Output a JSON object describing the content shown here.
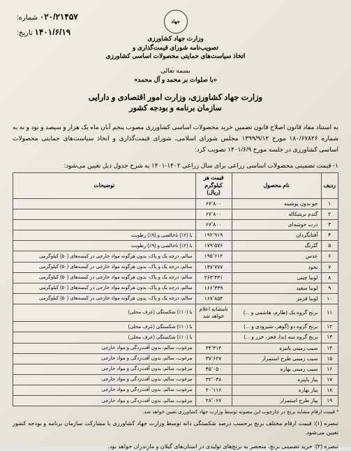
{
  "meta": {
    "number_label": "شماره:",
    "number_value": "۰۲۰/۲۱۴۵۷",
    "date_label": "تاریخ:",
    "date_value": "۱۴۰۱/۶/۱۹"
  },
  "header": {
    "logo_text": "جهاد",
    "line1": "وزارت جهاد کشاورزی",
    "line2": "تصویب‌نامه شورای قیمت‌گذاری و",
    "line3": "اتخاذ سیاست‌های حمایتی محصولات اساسی کشاورزی"
  },
  "bism": "بسمه تعالی",
  "salawat": "«با صلوات بر محمد و آل محمد»",
  "main_title": "وزارت جهاد کشاورزی، وزارت امور اقتصادی و دارایی",
  "sub_title": "سازمان برنامه و بودجه کشور",
  "paragraph": "به استناد مفاد قانون اصلاح قانون تضمین خرید محصولات اساسی کشاورزی مصوب پنجم آبان ماه یک هزار و سیصد و نود و نه به شماره ۱۸۰/۶۷۸۲۶ مورخ ۱۳۹۹/۹/۱۲ مجلس شورای اسلامی، شورای قیمت‌گذاری و اتخاذ سیاست‌های حمایتی محصولات اساسی کشاورزی در جلسه مورخ ۱۴۰۱/۶/۹ تصویب کرد:",
  "table_intro": "۱- قیمت تضمینی محصولات اساسی زراعی برای سال زراعی ۱۴۰۲-۱۴۰۱ به شرح جدول ذیل تعیین می‌شود:",
  "columns": {
    "row": "ردیف",
    "name": "نام محصول",
    "price": "قیمت هر کیلوگرم (ریال)",
    "notes": "توضیحات"
  },
  "rows": [
    {
      "n": "۱",
      "name": "جو بدون پوشینه",
      "price": "۶۷٬۸۰۰",
      "notes": ""
    },
    {
      "n": "۲",
      "name": "گندم تریتیکاله",
      "price": "۶۷٬۸۰۰",
      "notes": ""
    },
    {
      "n": "۳",
      "name": "ذرت خوشه‌ای",
      "price": "۶۷٬۸۰۰",
      "notes": ""
    },
    {
      "n": "۴",
      "name": "آفتابگردان",
      "price": "۱۹۲٬۹۱۹",
      "notes": "با (۲٪) ناخالصی و (۹٪) رطوبت"
    },
    {
      "n": "۵",
      "name": "گلرنگ",
      "price": "۱۷۹٬۵۷۶",
      "notes": "با (۲٪) ناخالصی و (۹٪) رطوبت"
    },
    {
      "n": "۶",
      "name": "عدس",
      "price": "۱۹۵٬۶۱۲",
      "notes": "سالم، درجه یک و پاک، بدون هرگونه مواد خارجی در کیسه‌های (۵۰) کیلوگرمی"
    },
    {
      "n": "۷",
      "name": "نخود",
      "price": "۱۴۷٬۷۷۷",
      "notes": "سالم، درجه یک و پاک، بدون هرگونه مواد خارجی در کیسه‌های (۵۰) کیلوگرمی"
    },
    {
      "n": "۸",
      "name": "لوبیا چیتی",
      "price": "۲۶۳٬۴۳۱",
      "notes": "سالم، درجه یک و پاک، بدون هرگونه مواد خارجی در کیسه‌های (۵۰) کیلوگرمی"
    },
    {
      "n": "۹",
      "name": "لوبیا سفید",
      "price": "۱۶۶٬۳۳۹",
      "notes": "سالم، درجه یک و پاک، بدون هرگونه مواد خارجی در کیسه‌های (۵۰) کیلوگرمی"
    },
    {
      "n": "۱۰",
      "name": "لوبیا قرمز",
      "price": "۱۶۷٬۸۵۴",
      "notes": "سالم، درجه یک و پاک، بدون هرگونه مواد خارجی در کیسه‌های (۵۰) کیلوگرمی"
    },
    {
      "n": "۱۱",
      "name": "برنج گروه یک (طارم، هاشمی و ...)",
      "price": "نامشابه اعلام خواهد شد",
      "notes": "با (۱۰٪) شکستگی (عرف محلی)"
    },
    {
      "n": "۱۲",
      "name": "برنج گروه دو (گوهر، شیرودی و ...)",
      "price": "",
      "notes": "با (۱۰٪) شکستگی (عرف محلی)"
    },
    {
      "n": "۱۳",
      "name": "برنج گروه سه (ندا، فجر، خزر و ...)",
      "price": "",
      "notes": "با (۱۰٪) شکستگی (عرف محلی)"
    },
    {
      "n": "۱۴",
      "name": "سیب زمینی پاییزه",
      "price": "۳۴٬۳۱۴",
      "notes": "مرغوب، سالم، بدون آفت‌زدگی و مواد خارجی"
    },
    {
      "n": "۱۵",
      "name": "سیب زمینی طرح استمرار",
      "price": "۳۷٬۶۲۷",
      "notes": "مرغوب، سالم، بدون آفت‌زدگی و مواد خارجی"
    },
    {
      "n": "۱۶",
      "name": "سیب زمینی بهاره",
      "price": "۴۵٬۰۵۰",
      "notes": "مرغوب، سالم، بدون آفت‌زدگی و مواد خارجی"
    },
    {
      "n": "۱۷",
      "name": "پیاز پاییزه",
      "price": "۳۲٬۰۳۸",
      "notes": "مرغوب، سالم، بدون آفت‌زدگی و مواد خارجی"
    },
    {
      "n": "۱۸",
      "name": "پیاز بهاره",
      "price": "۲۰٬۱۱۶",
      "notes": "مرغوب، سالم، بدون آفت‌زدگی و مواد خارجی"
    },
    {
      "n": "۱۹",
      "name": "پیاز طرح استمرار",
      "price": "۲۸٬۰۶۷",
      "notes": "مرغوب، سالم، بدون آفت‌زدگی و مواد خارجی"
    }
  ],
  "footnote": "* قیمت ارقام مشابه برنج در چارچوب این مصوبه توسط وزارت جهاد کشاورزی تعیین خواهد شد.",
  "note1": "تبصره (۱): قیمت ارقام مختلف برنج برحسب درصد شکستگی دانه توسط وزارت جهاد کشاورزی با مشارکت سازمان برنامه و بودجه کشور تعیین می‌شود.",
  "note2": "تبصره (۲): خرید تضمینی برنج، منحصر به برنج‌های تولیدی در استان‌های گیلان و مازندران خواهد بود."
}
